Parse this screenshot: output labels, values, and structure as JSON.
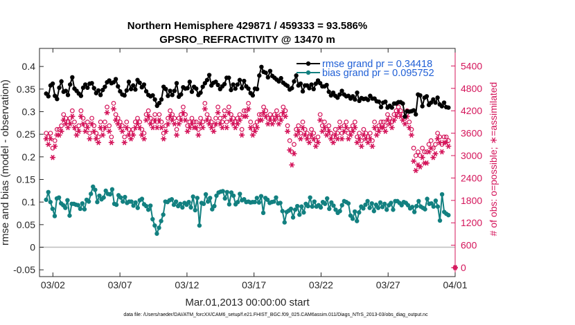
{
  "chart_data": {
    "type": "line",
    "title": "Northern Hemisphere 429871 / 459333 = 93.586%",
    "subtitle": "GPSRO_REFRACTIVITY @ 13470 m",
    "xlabel": "Mar.01,2013 00:00:00 start",
    "ylabel": "rmse and bias (model - observation)",
    "ylabel_right": "# of obs: o=possible; ∗=assimilated",
    "footnote": "data file: /Users/raeder/DAI/ATM_forcXX/CAM6_setup/f.e21.FHIST_BGC.f09_025.CAM6assim.011/Diags_NTrS_2013-03/obs_diag_output.nc",
    "x_ticks": [
      "03/02",
      "03/07",
      "03/12",
      "03/17",
      "03/22",
      "03/27",
      "04/01"
    ],
    "x_tick_days": [
      1,
      6,
      11,
      16,
      21,
      26,
      31
    ],
    "xlim": [
      0,
      31
    ],
    "y_ticks": [
      "-0.05",
      "0",
      "0.05",
      "0.1",
      "0.15",
      "0.2",
      "0.25",
      "0.3",
      "0.35",
      "0.4"
    ],
    "ylim": [
      -0.065,
      0.44
    ],
    "y_right_ticks": [
      "0",
      "600",
      "1200",
      "1800",
      "2400",
      "3000",
      "3600",
      "4200",
      "4800",
      "5400"
    ],
    "ylim_right": [
      -240,
      5870
    ],
    "grid": false,
    "legend_position": "top-right",
    "colors": {
      "rmse": "#000000",
      "bias": "#128080",
      "obs": "#d4145a",
      "zero_line": "#bdbdbd",
      "legend_text": "#1f5fd6"
    },
    "legend": [
      "rmse grand pr = 0.34418",
      "bias grand pr = 0.095752"
    ],
    "series": [
      {
        "name": "rmse grand pr = 0.34418",
        "axis": "left",
        "values": [
          0.34,
          0.334,
          0.358,
          0.362,
          0.335,
          0.328,
          0.353,
          0.367,
          0.344,
          0.346,
          0.337,
          0.36,
          0.376,
          0.351,
          0.346,
          0.34,
          0.335,
          0.353,
          0.36,
          0.353,
          0.362,
          0.363,
          0.352,
          0.341,
          0.347,
          0.337,
          0.348,
          0.355,
          0.365,
          0.369,
          0.363,
          0.365,
          0.372,
          0.356,
          0.345,
          0.338,
          0.336,
          0.347,
          0.366,
          0.35,
          0.358,
          0.349,
          0.37,
          0.364,
          0.354,
          0.36,
          0.345,
          0.337,
          0.334,
          0.336,
          0.327,
          0.313,
          0.319,
          0.327,
          0.355,
          0.35,
          0.335,
          0.346,
          0.337,
          0.346,
          0.363,
          0.333,
          0.338,
          0.354,
          0.351,
          0.352,
          0.366,
          0.344,
          0.355,
          0.351,
          0.337,
          0.342,
          0.355,
          0.363,
          0.37,
          0.381,
          0.358,
          0.364,
          0.366,
          0.359,
          0.35,
          0.356,
          0.361,
          0.375,
          0.375,
          0.348,
          0.36,
          0.351,
          0.36,
          0.37,
          0.352,
          0.368,
          0.356,
          0.351,
          0.341,
          0.336,
          0.351,
          0.35,
          0.38,
          0.399,
          0.388,
          0.386,
          0.376,
          0.39,
          0.379,
          0.375,
          0.371,
          0.367,
          0.374,
          0.364,
          0.36,
          0.357,
          0.349,
          0.352,
          0.367,
          0.38,
          0.358,
          0.362,
          0.345,
          0.358,
          0.358,
          0.352,
          0.36,
          0.35,
          0.362,
          0.369,
          0.363,
          0.356,
          0.356,
          0.359,
          0.344,
          0.336,
          0.342,
          0.335,
          0.331,
          0.338,
          0.346,
          0.338,
          0.334,
          0.335,
          0.329,
          0.334,
          0.327,
          0.342,
          0.324,
          0.33,
          0.328,
          0.329,
          0.326,
          0.335,
          0.329,
          0.329,
          0.323,
          0.322,
          0.31,
          0.32,
          0.322,
          0.309,
          0.313,
          0.309,
          0.318,
          0.318,
          0.321,
          0.321,
          0.318,
          0.289,
          0.301,
          0.3,
          0.301,
          0.303,
          0.294,
          0.338,
          0.336,
          0.312,
          0.331,
          0.334,
          0.315,
          0.32,
          0.327,
          0.32,
          0.331,
          0.316,
          0.312,
          0.32,
          0.31,
          0.309
        ]
      },
      {
        "name": "bias grand pr = 0.095752",
        "axis": "left",
        "values": [
          0.105,
          0.122,
          0.1,
          0.085,
          0.069,
          0.108,
          0.11,
          0.097,
          0.093,
          0.087,
          0.104,
          0.07,
          0.096,
          0.096,
          0.094,
          0.093,
          0.085,
          0.097,
          0.084,
          0.105,
          0.101,
          0.118,
          0.134,
          0.127,
          0.1,
          0.114,
          0.106,
          0.11,
          0.125,
          0.118,
          0.117,
          0.128,
          0.096,
          0.094,
          0.115,
          0.11,
          0.101,
          0.111,
          0.098,
          0.101,
          0.101,
          0.092,
          0.099,
          0.087,
          0.104,
          0.107,
          0.095,
          0.091,
          0.083,
          0.092,
          0.062,
          0.048,
          0.03,
          0.043,
          0.058,
          0.072,
          0.101,
          0.1,
          0.104,
          0.106,
          0.094,
          0.101,
          0.091,
          0.096,
          0.088,
          0.098,
          0.094,
          0.1,
          0.088,
          0.112,
          0.082,
          0.109,
          0.048,
          0.098,
          0.096,
          0.117,
          0.101,
          0.109,
          0.084,
          0.091,
          0.114,
          0.121,
          0.123,
          0.124,
          0.108,
          0.122,
          0.095,
          0.121,
          0.114,
          0.095,
          0.1,
          0.118,
          0.104,
          0.106,
          0.1,
          0.101,
          0.099,
          0.1,
          0.1,
          0.109,
          0.099,
          0.113,
          0.076,
          0.109,
          0.105,
          0.098,
          0.1,
          0.101,
          0.11,
          0.097,
          0.098,
          0.08,
          0.055,
          0.078,
          0.081,
          0.085,
          0.066,
          0.083,
          0.091,
          0.072,
          0.09,
          0.077,
          0.096,
          0.091,
          0.11,
          0.09,
          0.101,
          0.09,
          0.093,
          0.088,
          0.1,
          0.096,
          0.108,
          0.085,
          0.099,
          0.092,
          0.083,
          0.076,
          0.08,
          0.093,
          0.102,
          0.1,
          0.097,
          0.07,
          0.063,
          0.079,
          0.058,
          0.077,
          0.09,
          0.086,
          0.094,
          0.102,
          0.087,
          0.097,
          0.08,
          0.094,
          0.087,
          0.099,
          0.089,
          0.096,
          0.083,
          0.093,
          0.098,
          0.083,
          0.102,
          0.102,
          0.098,
          0.093,
          0.1,
          0.098,
          0.093,
          0.086,
          0.089,
          0.078,
          0.091,
          0.102,
          0.09,
          0.087,
          0.084,
          0.107,
          0.096,
          0.097,
          0.09,
          0.103,
          0.09,
          0.059,
          0.117,
          0.078,
          0.074,
          0.071
        ]
      },
      {
        "name": "possible",
        "axis": "right",
        "marker": "o",
        "values": [
          3600,
          3500,
          3600,
          3200,
          3400,
          3700,
          3700,
          3800,
          4100,
          4000,
          3900,
          4000,
          4200,
          3900,
          3700,
          3800,
          4200,
          4000,
          3800,
          3900,
          3600,
          4000,
          3800,
          3600,
          3500,
          3900,
          3700,
          3900,
          4300,
          3800,
          3500,
          4400,
          4100,
          4000,
          3900,
          3800,
          3500,
          3900,
          3700,
          3600,
          3700,
          3900,
          4000,
          3900,
          3700,
          3600,
          4100,
          4200,
          4000,
          3900,
          4100,
          3900,
          4100,
          3900,
          3600,
          3800,
          4000,
          4200,
          4100,
          4000,
          3700,
          4000,
          4100,
          4300,
          4100,
          3800,
          3900,
          4000,
          3900,
          3900,
          3700,
          4000,
          3900,
          4400,
          4100,
          4000,
          3900,
          3800,
          4000,
          4300,
          4000,
          3900,
          4200,
          3900,
          4300,
          4100,
          4000,
          3900,
          4000,
          4100,
          3700,
          4200,
          4200,
          4400,
          3900,
          3700,
          3800,
          3900,
          4100,
          4100,
          4300,
          4200,
          4000,
          4100,
          4000,
          4100,
          4200,
          4000,
          4100,
          4300,
          4200,
          3800,
          3400,
          3100,
          3300,
          3700,
          3800,
          3600,
          3900,
          3700,
          3600,
          3500,
          3700,
          3600,
          3400,
          3500,
          4100,
          3800,
          3900,
          3700,
          3800,
          3600,
          3500,
          3700,
          3600,
          3900,
          3600,
          3800,
          3900,
          3600,
          3700,
          3800,
          3900,
          3500,
          3600,
          3400,
          3700,
          3600,
          3500,
          3600,
          3400,
          3900,
          3700,
          3800,
          3900,
          3900,
          3800,
          4100,
          4000,
          3900,
          4100,
          4200,
          4300,
          4200,
          4100,
          4000,
          4200,
          3900,
          3700,
          3200,
          3000,
          3100,
          3000,
          3200,
          3100,
          3100,
          3300,
          3400,
          3200,
          3300,
          3600,
          3500,
          3300,
          3500,
          3500,
          3400
        ]
      },
      {
        "name": "assimilated",
        "axis": "right",
        "marker": "*",
        "values": [
          3450,
          3300,
          3450,
          2950,
          3250,
          3550,
          3550,
          3650,
          3950,
          3850,
          3750,
          3850,
          4050,
          3750,
          3550,
          3650,
          4050,
          3850,
          3650,
          3750,
          3450,
          3850,
          3650,
          3450,
          3350,
          3750,
          3550,
          3750,
          4150,
          3650,
          3350,
          4250,
          3950,
          3850,
          3750,
          3650,
          3350,
          3750,
          3550,
          3450,
          3550,
          3750,
          3850,
          3750,
          3550,
          3450,
          3950,
          4050,
          3850,
          3750,
          3950,
          3750,
          3950,
          3750,
          3450,
          3650,
          3850,
          4050,
          3950,
          3850,
          3550,
          3850,
          3950,
          4150,
          3950,
          3650,
          3750,
          3850,
          3750,
          3750,
          3550,
          3850,
          3750,
          4250,
          3950,
          3850,
          3750,
          3650,
          3850,
          4150,
          3850,
          3750,
          4050,
          3750,
          4150,
          3950,
          3850,
          3750,
          3850,
          3950,
          3550,
          4050,
          4050,
          4250,
          3750,
          3550,
          3650,
          3750,
          3950,
          3950,
          4150,
          4050,
          3850,
          3950,
          3850,
          3950,
          4050,
          3850,
          3950,
          4150,
          4050,
          3650,
          3150,
          2750,
          3050,
          3550,
          3650,
          3450,
          3750,
          3550,
          3450,
          3350,
          3550,
          3450,
          3250,
          3350,
          3950,
          3650,
          3750,
          3550,
          3650,
          3450,
          3350,
          3550,
          3450,
          3750,
          3450,
          3650,
          3750,
          3450,
          3550,
          3650,
          3750,
          3350,
          3450,
          3250,
          3550,
          3450,
          3350,
          3450,
          3250,
          3750,
          3550,
          3650,
          3750,
          3750,
          3650,
          3950,
          3850,
          3750,
          3950,
          4050,
          4150,
          4050,
          3950,
          3850,
          4050,
          3750,
          3550,
          2850,
          2600,
          2750,
          2700,
          2950,
          2800,
          2800,
          3100,
          3200,
          2950,
          3050,
          3450,
          3350,
          3100,
          3350,
          3350,
          3250
        ]
      }
    ],
    "right_axis_outlier": {
      "day": 31.0,
      "value": 0
    }
  }
}
